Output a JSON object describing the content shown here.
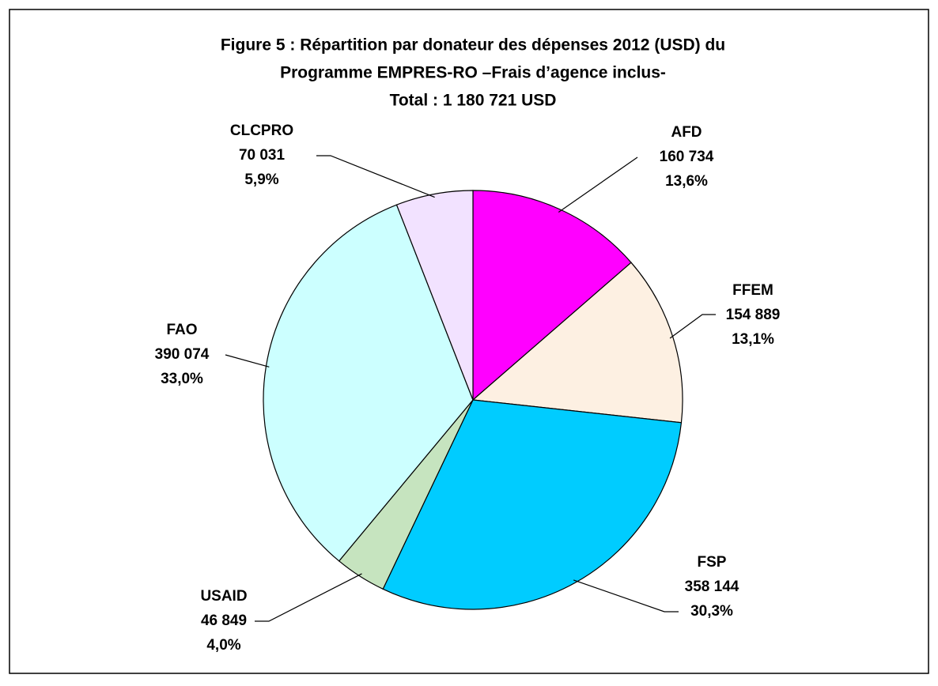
{
  "chart_data": {
    "type": "pie",
    "title": [
      "Figure 5 : Répartition par donateur des dépenses 2012 (USD) du",
      "Programme EMPRES-RO –Frais d’agence inclus-"
    ],
    "subtitle": "Total : 1 180 721 USD",
    "categories": [
      "AFD",
      "FFEM",
      "FSP",
      "USAID",
      "FAO",
      "CLCPRO"
    ],
    "values": [
      160734,
      154889,
      358144,
      46849,
      390074,
      70031
    ],
    "value_labels": [
      "160 734",
      "154 889",
      "358 144",
      "46 849",
      "390 074",
      "70 031"
    ],
    "percentages": [
      13.6,
      13.1,
      30.3,
      4.0,
      33.0,
      5.9
    ],
    "percentage_labels": [
      "13,6%",
      "13,1%",
      "30,3%",
      "4,0%",
      "33,0%",
      "5,9%"
    ],
    "colors": [
      "#ff00ff",
      "#fdf0e2",
      "#00ccff",
      "#c6e4bf",
      "#ccffff",
      "#f2e2ff"
    ]
  }
}
